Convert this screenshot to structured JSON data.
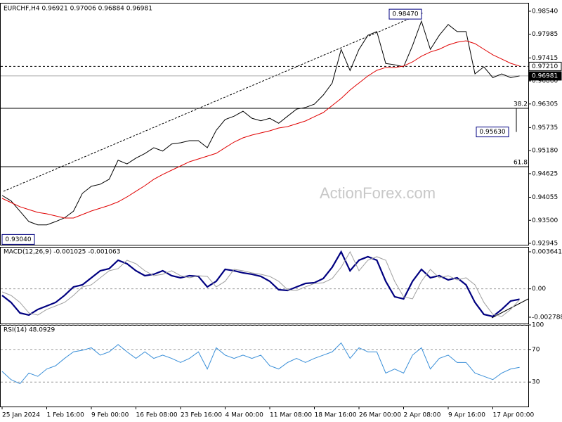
{
  "chart_data": [
    {
      "type": "line",
      "title": "EURCHF,H4 0.96921 0.97006 0.96884 0.96981",
      "watermark": "ActionForex.com",
      "ylim": [
        0.92911,
        0.98726
      ],
      "yticks": [
        {
          "value": 0.9854,
          "label": "0.98540"
        },
        0.97985,
        0.97415,
        {
          "value": 0.9686,
          "label": "0.96860"
        },
        0.96305,
        0.95735,
        {
          "value": 0.9518,
          "label": "0.95180"
        },
        0.94625,
        0.94055,
        {
          "value": 0.935,
          "label": "0.93500"
        },
        0.92945
      ],
      "series": [
        {
          "color": "#000000",
          "values": [
            0.941,
            0.9397,
            0.9372,
            0.9347,
            0.9339,
            0.9339,
            0.9347,
            0.9356,
            0.9372,
            0.9415,
            0.9432,
            0.9437,
            0.9449,
            0.9495,
            0.9486,
            0.95,
            0.9511,
            0.9525,
            0.9517,
            0.9534,
            0.9537,
            0.9542,
            0.9542,
            0.9525,
            0.9567,
            0.9593,
            0.9601,
            0.9613,
            0.9596,
            0.959,
            0.9596,
            0.9584,
            0.9601,
            0.9618,
            0.9622,
            0.963,
            0.9652,
            0.9681,
            0.9762,
            0.9711,
            0.9762,
            0.9796,
            0.9805,
            0.9728,
            0.9725,
            0.972,
            0.9771,
            0.983,
            0.9762,
            0.9796,
            0.9822,
            0.9805,
            0.9805,
            0.9703,
            0.972,
            0.9694,
            0.9703,
            0.9694,
            0.96981
          ]
        },
        {
          "color": "#e00000",
          "values": [
            0.9403,
            0.93928,
            0.93827,
            0.93759,
            0.93691,
            0.93657,
            0.93606,
            0.93555,
            0.93555,
            0.9364,
            0.93725,
            0.93793,
            0.9386,
            0.93945,
            0.94064,
            0.942,
            0.94335,
            0.94488,
            0.94606,
            0.94708,
            0.9481,
            0.94912,
            0.94979,
            0.95047,
            0.95115,
            0.95251,
            0.95386,
            0.95488,
            0.95556,
            0.95607,
            0.95658,
            0.95725,
            0.95759,
            0.95827,
            0.95895,
            0.95997,
            0.96098,
            0.96268,
            0.96438,
            0.96641,
            0.96811,
            0.9698,
            0.97116,
            0.97184,
            0.97184,
            0.97218,
            0.97319,
            0.97455,
            0.97557,
            0.97624,
            0.97726,
            0.97794,
            0.97828,
            0.9776,
            0.97624,
            0.97489,
            0.97387,
            0.97285,
            0.97218
          ]
        }
      ],
      "price_tags": [
        {
          "value": 0.9721,
          "label": "0.97210"
        },
        {
          "value": 0.96981,
          "label": "0.96981"
        }
      ],
      "fib_levels": [
        {
          "value": 0.962,
          "label": "38.2"
        },
        {
          "value": 0.94793,
          "label": "61.8"
        }
      ],
      "extremes": [
        {
          "value": 0.9847,
          "label": "0.98470"
        },
        {
          "value": 0.9563,
          "label": "0.95630"
        },
        {
          "value": 0.9304,
          "label": "0.93040"
        }
      ]
    },
    {
      "type": "line",
      "title": "MACD(12,26,9) -0.001025 -0.001063",
      "ylim": [
        -0.00341,
        0.004125
      ],
      "yticks": [
        0.003641,
        {
          "value": 0,
          "label": "0.00"
        },
        -0.002788
      ],
      "series": [
        {
          "color": "#000080",
          "values": [
            -0.000643,
            -0.001334,
            -0.002371,
            -0.002578,
            -0.002025,
            -0.00168,
            -0.001334,
            -0.000643,
            0.000187,
            0.000394,
            0.001085,
            0.001777,
            0.001984,
            0.002813,
            0.002468,
            0.001777,
            0.001293,
            0.001431,
            0.001777,
            0.001293,
            0.001085,
            0.001293,
            0.001224,
            0.000187,
            0.00074,
            0.001915,
            0.001777,
            0.001569,
            0.001431,
            0.001224,
            0.00074,
            -9e-05,
            -0.000159,
            0.000187,
            0.000532,
            0.000601,
            0.001016,
            0.002122,
            0.003643,
            0.001777,
            0.002813,
            0.003159,
            0.002813,
            0.00074,
            -0.000781,
            -0.000989,
            0.00074,
            0.001915,
            0.001085,
            0.001293,
            0.000878,
            0.001085,
            0.000394,
            -0.001334,
            -0.002509,
            -0.002717,
            -0.002025,
            -0.001196,
            -0.001025
          ]
        },
        {
          "color": "#a0a0a0",
          "values": [
            -0.0003,
            -0.000643,
            -0.001334,
            -0.002371,
            -0.002578,
            -0.002025,
            -0.00168,
            -0.001334,
            -0.000643,
            0.000187,
            0.000394,
            0.001085,
            0.001777,
            0.001984,
            0.002813,
            0.002468,
            0.001777,
            0.001293,
            0.001431,
            0.001777,
            0.001293,
            0.001085,
            0.001293,
            0.001224,
            0.000187,
            0.00074,
            0.001915,
            0.001777,
            0.001569,
            0.001431,
            0.001224,
            0.00074,
            -9e-05,
            -0.000159,
            0.000187,
            0.000532,
            0.000601,
            0.001016,
            0.002122,
            0.003643,
            0.001777,
            0.002813,
            0.003159,
            0.002813,
            0.00074,
            -0.000781,
            -0.000989,
            0.00074,
            0.001915,
            0.001085,
            0.001293,
            0.000878,
            0.001085,
            0.000394,
            -0.001334,
            -0.002509,
            -0.002717,
            -0.002025,
            -0.001063
          ]
        }
      ]
    },
    {
      "type": "line",
      "title": "RSI(14) 48.0929",
      "ylim": [
        0,
        100
      ],
      "yticks": [
        100,
        70,
        30
      ],
      "categories": [
        "25 Jan 2024",
        null,
        null,
        null,
        null,
        "1 Feb 16:00",
        null,
        null,
        null,
        null,
        "9 Feb 00:00",
        null,
        null,
        null,
        null,
        "16 Feb 08:00",
        null,
        null,
        null,
        null,
        "23 Feb 16:00",
        null,
        null,
        null,
        null,
        "4 Mar 00:00",
        null,
        null,
        null,
        null,
        "11 Mar 08:00",
        null,
        null,
        null,
        null,
        "18 Mar 16:00",
        null,
        null,
        null,
        null,
        "26 Mar 00:00",
        null,
        null,
        null,
        null,
        "2 Apr 08:00",
        null,
        null,
        null,
        null,
        "9 Apr 16:00",
        null,
        null,
        null,
        null,
        "17 Apr 00:00",
        null,
        null,
        null
      ],
      "series": [
        {
          "color": "#3a8fd8",
          "values": [
            43,
            33,
            28,
            41,
            37,
            46,
            50,
            59,
            67,
            69,
            72,
            63,
            67,
            76,
            67,
            59,
            67,
            59,
            63,
            59,
            54,
            59,
            67,
            46,
            72,
            63,
            59,
            63,
            59,
            63,
            50,
            46,
            54,
            59,
            54,
            59,
            63,
            67,
            78,
            59,
            72,
            67,
            67,
            41,
            46,
            41,
            63,
            72,
            46,
            59,
            63,
            54,
            54,
            41,
            37,
            33,
            41,
            46,
            48.0929
          ]
        }
      ]
    }
  ]
}
